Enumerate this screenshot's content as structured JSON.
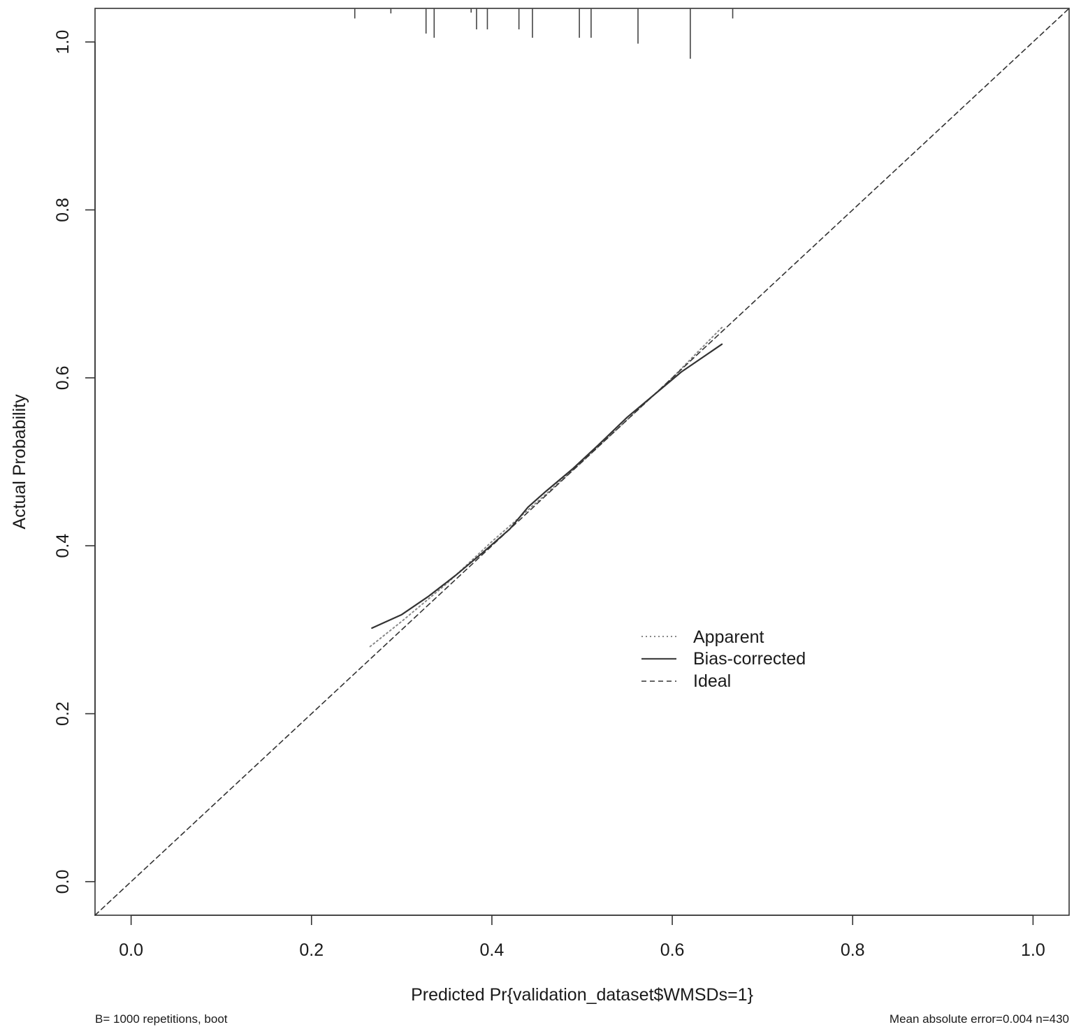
{
  "chart_data": {
    "type": "line",
    "xlabel": "Predicted Pr{validation_dataset$WMSDs=1}",
    "ylabel": "Actual Probability",
    "xlim": [
      -0.04,
      1.04
    ],
    "ylim": [
      -0.04,
      1.04
    ],
    "x_ticks": [
      "0.0",
      "0.2",
      "0.4",
      "0.6",
      "0.8",
      "1.0"
    ],
    "y_ticks": [
      "0.0",
      "0.2",
      "0.4",
      "0.6",
      "0.8",
      "1.0"
    ],
    "grid": false,
    "legend_position": "right-center",
    "footer_left": "B= 1000 repetitions, boot",
    "footer_right": "Mean absolute error=0.004 n=430",
    "series": [
      {
        "name": "Apparent",
        "style": "dotted",
        "color": "#888888",
        "x": [
          0.265,
          0.3,
          0.35,
          0.4,
          0.45,
          0.5,
          0.55,
          0.6,
          0.655
        ],
        "y": [
          0.28,
          0.31,
          0.355,
          0.405,
          0.452,
          0.5,
          0.55,
          0.6,
          0.66
        ]
      },
      {
        "name": "Bias-corrected",
        "style": "solid",
        "color": "#333333",
        "x": [
          0.267,
          0.3,
          0.33,
          0.36,
          0.39,
          0.42,
          0.44,
          0.46,
          0.49,
          0.52,
          0.55,
          0.58,
          0.61,
          0.655
        ],
        "y": [
          0.302,
          0.318,
          0.34,
          0.365,
          0.392,
          0.42,
          0.446,
          0.465,
          0.492,
          0.522,
          0.553,
          0.58,
          0.607,
          0.64
        ]
      },
      {
        "name": "Ideal",
        "style": "dashed",
        "color": "#333333",
        "x": [
          -0.04,
          1.04
        ],
        "y": [
          -0.04,
          1.04
        ]
      }
    ],
    "rug": {
      "x": [
        0.248,
        0.288,
        0.327,
        0.336,
        0.377,
        0.383,
        0.395,
        0.43,
        0.445,
        0.497,
        0.51,
        0.562,
        0.62,
        0.667
      ],
      "height": [
        0.012,
        0.006,
        0.03,
        0.035,
        0.005,
        0.025,
        0.025,
        0.025,
        0.035,
        0.035,
        0.035,
        0.042,
        0.06,
        0.012
      ]
    }
  }
}
